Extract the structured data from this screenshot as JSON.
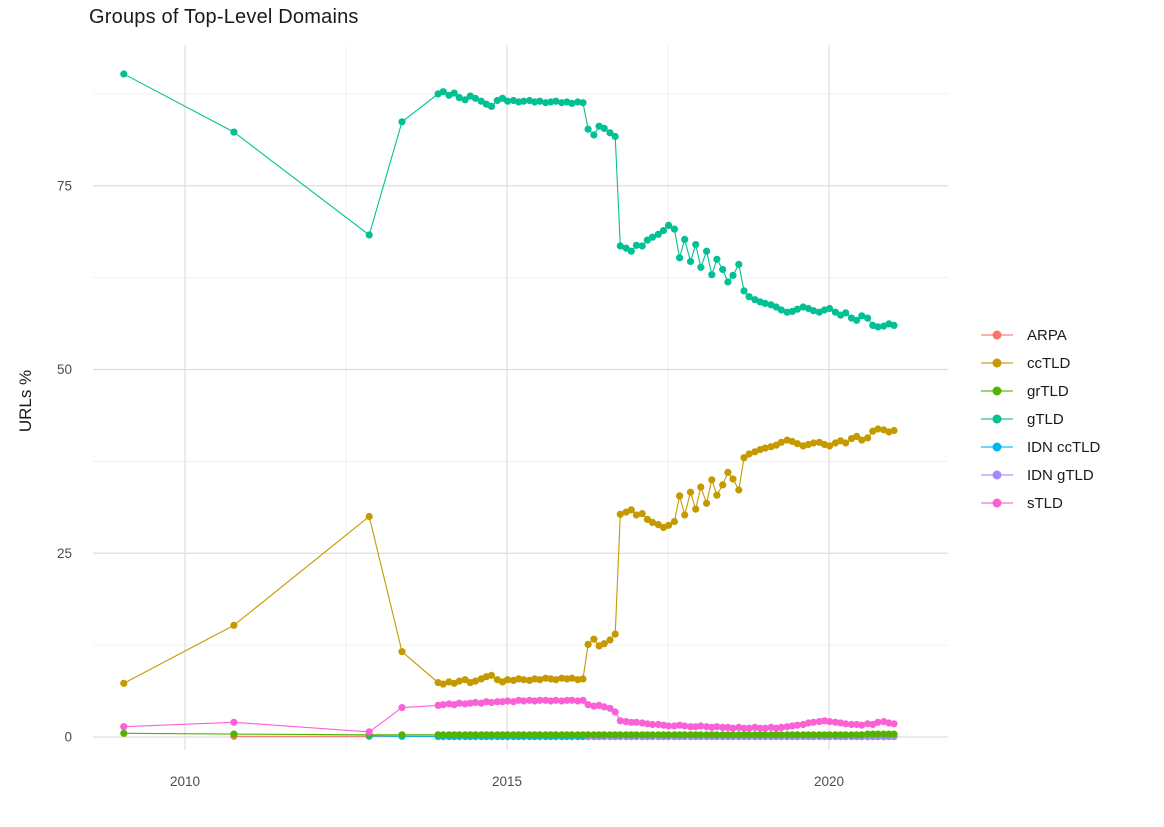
{
  "chart_data": {
    "type": "scatter",
    "title": "Groups of Top-Level Domains",
    "xlabel": "",
    "ylabel": "URLs %",
    "legend_position": "right",
    "grid": true,
    "x_range": [
      2008.6,
      2021.9
    ],
    "y_range": [
      -2,
      93.5
    ],
    "x_ticks": [
      2010,
      2015,
      2020
    ],
    "x_tick_labels": [
      "2010",
      "2015",
      "2020"
    ],
    "x_minor_ticks": [
      2012.5,
      2017.5
    ],
    "y_ticks": [
      0,
      25,
      50,
      75
    ],
    "y_tick_labels": [
      "0",
      "25",
      "50",
      "75"
    ],
    "y_minor_ticks": [
      12.5,
      37.5,
      62.5,
      87.5
    ],
    "x_sparse": [
      2009.05,
      2010.76,
      2012.86,
      2013.37
    ],
    "x_dense": [
      2013.93,
      2014.01,
      2014.1,
      2014.18,
      2014.26,
      2014.35,
      2014.43,
      2014.51,
      2014.6,
      2014.68,
      2014.76,
      2014.85,
      2014.93,
      2015.01,
      2015.1,
      2015.18,
      2015.26,
      2015.35,
      2015.43,
      2015.51,
      2015.6,
      2015.68,
      2015.76,
      2015.85,
      2015.93,
      2016.01,
      2016.1,
      2016.18,
      2016.26,
      2016.35,
      2016.43,
      2016.51,
      2016.6,
      2016.68,
      2016.76,
      2016.85,
      2016.93,
      2017.01,
      2017.1,
      2017.18,
      2017.26,
      2017.35,
      2017.43,
      2017.51,
      2017.6,
      2017.68,
      2017.76,
      2017.85,
      2017.93,
      2018.01,
      2018.1,
      2018.18,
      2018.26,
      2018.35,
      2018.43,
      2018.51,
      2018.6,
      2018.68,
      2018.76,
      2018.85,
      2018.93,
      2019.01,
      2019.1,
      2019.18,
      2019.26,
      2019.35,
      2019.43,
      2019.51,
      2019.6,
      2019.68,
      2019.76,
      2019.85,
      2019.93,
      2020.01,
      2020.1,
      2020.18,
      2020.26,
      2020.35,
      2020.43,
      2020.51,
      2020.6,
      2020.68,
      2020.76,
      2020.85,
      2020.93,
      2021.01
    ],
    "series": [
      {
        "name": "ARPA",
        "color": "#F8766D",
        "z": 1,
        "sparse_x": [
          2010.76,
          2012.86,
          2013.37
        ],
        "sparse_y": [
          0.1,
          0.1,
          0.1
        ],
        "dense_from": 0,
        "dense_y": [
          0.05,
          0.05,
          0.05,
          0.05,
          0.05,
          0.05,
          0.05,
          0.05,
          0.05,
          0.05,
          0.05,
          0.05,
          0.05,
          0.05,
          0.05,
          0.05,
          0.05,
          0.05,
          0.05,
          0.05,
          0.05,
          0.05,
          0.05,
          0.05,
          0.05,
          0.05,
          0.05,
          0.05,
          0.05,
          0.05,
          0.05,
          0.05,
          0.05,
          0.05,
          0.05,
          0.05,
          0.05,
          0.05,
          0.05,
          0.05,
          0.05,
          0.05,
          0.05,
          0.05,
          0.05,
          0.05,
          0.05,
          0.05,
          0.05,
          0.05,
          0.05,
          0.05,
          0.05,
          0.05,
          0.05,
          0.05,
          0.05,
          0.05,
          0.05,
          0.05,
          0.05,
          0.05,
          0.05,
          0.05,
          0.05,
          0.05,
          0.05,
          0.05,
          0.05,
          0.05,
          0.05,
          0.05,
          0.05,
          0.05,
          0.05,
          0.05,
          0.05,
          0.05,
          0.05,
          0.05,
          0.05,
          0.05,
          0.05,
          0.05,
          0.05,
          0.05
        ]
      },
      {
        "name": "ccTLD",
        "color": "#C49A00",
        "z": 4,
        "sparse_x": [
          2009.05,
          2010.76,
          2012.86,
          2013.37
        ],
        "sparse_y": [
          7.3,
          15.2,
          30.0,
          11.6
        ],
        "dense_from": 0,
        "dense_y": [
          7.4,
          7.2,
          7.5,
          7.3,
          7.6,
          7.8,
          7.4,
          7.6,
          7.9,
          8.2,
          8.4,
          7.8,
          7.5,
          7.8,
          7.7,
          7.9,
          7.8,
          7.7,
          7.9,
          7.8,
          8.0,
          7.9,
          7.8,
          8.0,
          7.9,
          8.0,
          7.8,
          7.9,
          12.6,
          13.3,
          12.4,
          12.7,
          13.2,
          14.0,
          30.3,
          30.6,
          30.9,
          30.2,
          30.4,
          29.6,
          29.2,
          28.9,
          28.5,
          28.8,
          29.3,
          32.8,
          30.2,
          33.3,
          31.0,
          34.0,
          31.8,
          35.0,
          32.9,
          34.3,
          36.0,
          35.1,
          33.6,
          38.0,
          38.5,
          38.8,
          39.1,
          39.3,
          39.5,
          39.7,
          40.1,
          40.4,
          40.2,
          39.9,
          39.6,
          39.8,
          40.0,
          40.1,
          39.8,
          39.6,
          40.0,
          40.3,
          40.0,
          40.6,
          40.9,
          40.4,
          40.7,
          41.6,
          41.9,
          41.8,
          41.5,
          41.7
        ]
      },
      {
        "name": "grTLD",
        "color": "#53B400",
        "z": 6,
        "sparse_x": [
          2009.05,
          2010.76,
          2012.86,
          2013.37
        ],
        "sparse_y": [
          0.5,
          0.4,
          0.3,
          0.3
        ],
        "dense_from": 0,
        "dense_y": [
          0.3,
          0.3,
          0.3,
          0.3,
          0.3,
          0.3,
          0.3,
          0.3,
          0.3,
          0.3,
          0.3,
          0.3,
          0.3,
          0.3,
          0.3,
          0.3,
          0.3,
          0.3,
          0.3,
          0.3,
          0.3,
          0.3,
          0.3,
          0.3,
          0.3,
          0.3,
          0.3,
          0.3,
          0.3,
          0.3,
          0.3,
          0.3,
          0.3,
          0.3,
          0.3,
          0.3,
          0.3,
          0.3,
          0.3,
          0.3,
          0.3,
          0.3,
          0.3,
          0.3,
          0.3,
          0.3,
          0.3,
          0.3,
          0.3,
          0.3,
          0.3,
          0.3,
          0.3,
          0.3,
          0.3,
          0.3,
          0.3,
          0.3,
          0.3,
          0.3,
          0.3,
          0.3,
          0.3,
          0.3,
          0.3,
          0.3,
          0.3,
          0.3,
          0.3,
          0.3,
          0.3,
          0.3,
          0.3,
          0.3,
          0.3,
          0.3,
          0.3,
          0.3,
          0.3,
          0.3,
          0.4,
          0.4,
          0.4,
          0.4,
          0.4,
          0.4
        ]
      },
      {
        "name": "gTLD",
        "color": "#00C094",
        "z": 5,
        "sparse_x": [
          2009.05,
          2010.76,
          2012.86,
          2013.37
        ],
        "sparse_y": [
          90.2,
          82.3,
          68.3,
          83.7
        ],
        "dense_from": 0,
        "dense_y": [
          87.5,
          87.8,
          87.3,
          87.6,
          87.0,
          86.7,
          87.2,
          86.9,
          86.5,
          86.1,
          85.8,
          86.6,
          86.9,
          86.5,
          86.6,
          86.4,
          86.5,
          86.6,
          86.4,
          86.5,
          86.3,
          86.4,
          86.5,
          86.3,
          86.4,
          86.2,
          86.4,
          86.3,
          82.7,
          81.9,
          83.1,
          82.8,
          82.2,
          81.7,
          66.8,
          66.5,
          66.1,
          66.9,
          66.8,
          67.6,
          68.0,
          68.4,
          68.9,
          69.6,
          69.1,
          65.2,
          67.7,
          64.7,
          67.0,
          63.9,
          66.1,
          62.9,
          65.0,
          63.6,
          61.9,
          62.8,
          64.3,
          60.7,
          59.9,
          59.5,
          59.2,
          59.0,
          58.8,
          58.5,
          58.1,
          57.8,
          57.9,
          58.2,
          58.5,
          58.3,
          58.0,
          57.8,
          58.1,
          58.3,
          57.8,
          57.4,
          57.7,
          57.0,
          56.7,
          57.3,
          57.0,
          56.0,
          55.8,
          55.9,
          56.2,
          56.0
        ]
      },
      {
        "name": "IDN ccTLD",
        "color": "#00B6EB",
        "z": 2,
        "sparse_x": [
          2012.86,
          2013.37
        ],
        "sparse_y": [
          0.15,
          0.1
        ],
        "dense_from": 0,
        "dense_y": [
          0.1,
          0.1,
          0.1,
          0.1,
          0.1,
          0.1,
          0.1,
          0.1,
          0.1,
          0.1,
          0.1,
          0.1,
          0.1,
          0.1,
          0.1,
          0.1,
          0.1,
          0.1,
          0.1,
          0.1,
          0.1,
          0.1,
          0.1,
          0.1,
          0.1,
          0.1,
          0.1,
          0.1,
          0.1,
          0.1,
          0.1,
          0.1,
          0.1,
          0.1,
          0.1,
          0.1,
          0.1,
          0.1,
          0.1,
          0.1,
          0.1,
          0.1,
          0.1,
          0.1,
          0.1,
          0.1,
          0.1,
          0.1,
          0.1,
          0.1,
          0.1,
          0.1,
          0.1,
          0.1,
          0.1,
          0.1,
          0.1,
          0.1,
          0.1,
          0.1,
          0.1,
          0.1,
          0.1,
          0.1,
          0.1,
          0.1,
          0.1,
          0.1,
          0.1,
          0.1,
          0.1,
          0.1,
          0.1,
          0.1,
          0.1,
          0.1,
          0.1,
          0.1,
          0.1,
          0.1,
          0.1,
          0.1,
          0.1,
          0.1,
          0.1,
          0.1
        ]
      },
      {
        "name": "IDN gTLD",
        "color": "#A58AFF",
        "z": 3,
        "sparse_x": [],
        "sparse_y": [],
        "dense_from": 28,
        "dense_y": [
          0.05,
          0.05,
          0.05,
          0.05,
          0.05,
          0.05,
          0.05,
          0.05,
          0.05,
          0.05,
          0.05,
          0.05,
          0.05,
          0.05,
          0.05,
          0.05,
          0.05,
          0.05,
          0.05,
          0.05,
          0.05,
          0.05,
          0.05,
          0.05,
          0.05,
          0.05,
          0.05,
          0.05,
          0.05,
          0.05,
          0.05,
          0.05,
          0.05,
          0.05,
          0.05,
          0.05,
          0.05,
          0.05,
          0.05,
          0.05,
          0.05,
          0.05,
          0.05,
          0.05,
          0.05,
          0.05,
          0.05,
          0.05,
          0.05,
          0.05,
          0.05,
          0.05,
          0.05,
          0.05,
          0.05,
          0.05,
          0.05,
          0.05
        ]
      },
      {
        "name": "sTLD",
        "color": "#FB61D7",
        "z": 7,
        "sparse_x": [
          2009.05,
          2010.76,
          2012.86,
          2013.37
        ],
        "sparse_y": [
          1.4,
          2.0,
          0.7,
          4.0
        ],
        "dense_from": 0,
        "dense_y": [
          4.3,
          4.4,
          4.5,
          4.4,
          4.6,
          4.5,
          4.6,
          4.7,
          4.6,
          4.8,
          4.7,
          4.8,
          4.8,
          4.9,
          4.8,
          5.0,
          4.9,
          5.0,
          4.9,
          5.0,
          5.0,
          4.9,
          5.0,
          4.9,
          5.0,
          5.0,
          4.9,
          5.0,
          4.4,
          4.2,
          4.3,
          4.1,
          3.9,
          3.4,
          2.2,
          2.1,
          2.0,
          2.0,
          1.9,
          1.8,
          1.7,
          1.7,
          1.6,
          1.5,
          1.5,
          1.6,
          1.5,
          1.4,
          1.4,
          1.5,
          1.4,
          1.3,
          1.4,
          1.3,
          1.3,
          1.2,
          1.3,
          1.2,
          1.2,
          1.3,
          1.2,
          1.2,
          1.3,
          1.2,
          1.3,
          1.4,
          1.5,
          1.6,
          1.7,
          1.9,
          2.0,
          2.1,
          2.2,
          2.1,
          2.0,
          1.9,
          1.8,
          1.7,
          1.7,
          1.6,
          1.8,
          1.7,
          2.0,
          2.1,
          1.9,
          1.8
        ]
      }
    ],
    "colors": {
      "title_text": "#1a1a1a",
      "tick_text": "#4d4d4d",
      "legend_text": "#1a1a1a",
      "grid_major": "#dedede",
      "grid_minor": "#f0f0f0",
      "background": "#ffffff"
    }
  }
}
